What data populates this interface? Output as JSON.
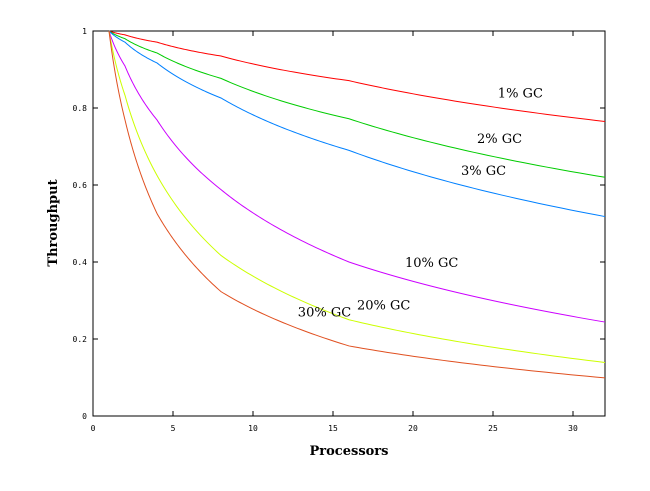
{
  "chart_data": {
    "type": "line",
    "title": "",
    "xlabel": "Processors",
    "ylabel": "Throughput",
    "xlim": [
      0,
      32
    ],
    "ylim": [
      0,
      1
    ],
    "xticks": [
      "0",
      "5",
      "10",
      "15",
      "20",
      "25",
      "30"
    ],
    "yticks": [
      "0",
      "0.2",
      "0.4",
      "0.6",
      "0.8",
      "1"
    ],
    "grid": false,
    "legend": "inline labels",
    "x": [
      1,
      2,
      4,
      8,
      16,
      32
    ],
    "series": [
      {
        "name": "1% GC",
        "color": "#ff0000",
        "values": [
          1.0,
          0.99,
          0.971,
          0.935,
          0.871,
          0.765
        ]
      },
      {
        "name": "2% GC",
        "color": "#00cc00",
        "values": [
          1.0,
          0.98,
          0.943,
          0.877,
          0.772,
          0.62
        ]
      },
      {
        "name": "3% GC",
        "color": "#0080ff",
        "values": [
          1.0,
          0.971,
          0.917,
          0.826,
          0.69,
          0.518
        ]
      },
      {
        "name": "10% GC",
        "color": "#cc00ff",
        "values": [
          1.0,
          0.909,
          0.769,
          0.588,
          0.4,
          0.244
        ]
      },
      {
        "name": "20% GC",
        "color": "#ccff00",
        "values": [
          1.0,
          0.833,
          0.625,
          0.417,
          0.25,
          0.139
        ]
      },
      {
        "name": "30% GC",
        "color": "#e05020",
        "values": [
          1.0,
          0.769,
          0.526,
          0.323,
          0.182,
          0.099
        ]
      }
    ]
  }
}
